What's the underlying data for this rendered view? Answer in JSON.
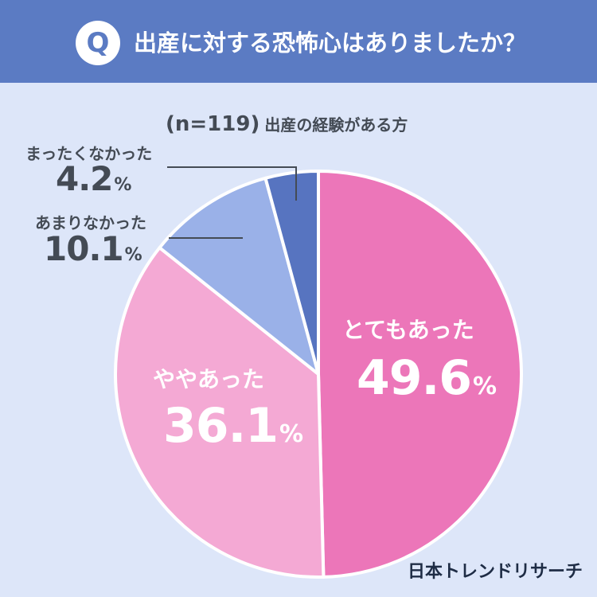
{
  "header": {
    "badge": "Q",
    "question": "出産に対する恐怖心はありましたか？"
  },
  "sample": {
    "n": "(n=119)",
    "description": "出産の経験がある方"
  },
  "brand": "日本トレンドリサーチ",
  "colors": {
    "header": "#5b7bc3",
    "background": "#dde6f9",
    "とてもあった": "#ec76b9",
    "ややあった": "#f4a9d4",
    "あまりなかった": "#9ab1e8",
    "まったくなかった": "#5774c0"
  },
  "chart_data": {
    "type": "pie",
    "title": "出産に対する恐怖心はありましたか？",
    "categories": [
      "とてもあった",
      "ややあった",
      "あまりなかった",
      "まったくなかった"
    ],
    "values": [
      49.6,
      36.1,
      10.1,
      4.2
    ],
    "labels": [
      "49.6",
      "36.1",
      "10.1",
      "4.2"
    ],
    "unit": "%"
  }
}
